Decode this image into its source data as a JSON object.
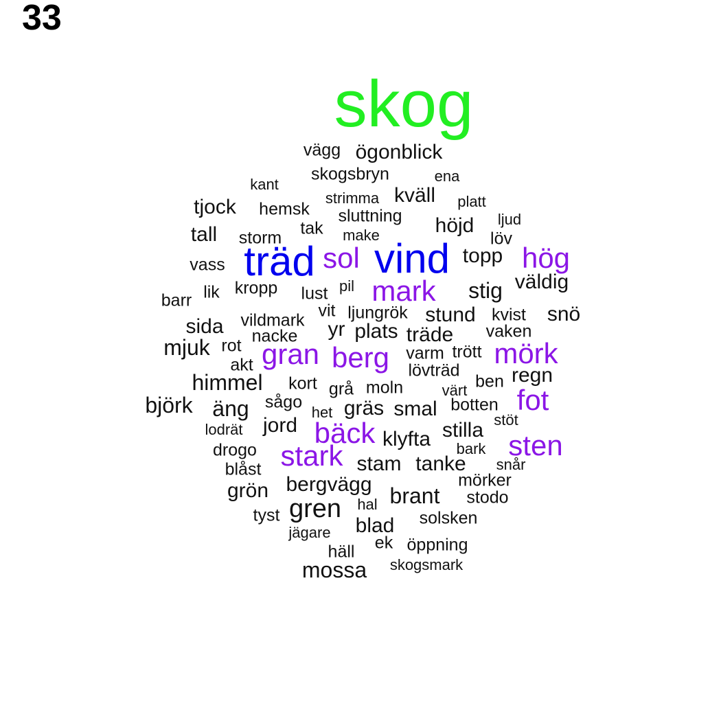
{
  "panel_number": "33",
  "colors": {
    "green": "#22ee22",
    "blue": "#0000ee",
    "purple": "#8b16e6",
    "black": "#111111"
  },
  "words": [
    {
      "text": "skog",
      "color": "green",
      "size": 1
    },
    {
      "text": "träd",
      "color": "blue",
      "size": 2
    },
    {
      "text": "vind",
      "color": "blue",
      "size": 2
    },
    {
      "text": "sol",
      "color": "purple",
      "size": 3
    },
    {
      "text": "hög",
      "color": "purple",
      "size": 3
    },
    {
      "text": "mark",
      "color": "purple",
      "size": 3
    },
    {
      "text": "berg",
      "color": "purple",
      "size": 3
    },
    {
      "text": "mörk",
      "color": "purple",
      "size": 3
    },
    {
      "text": "gran",
      "color": "purple",
      "size": 3
    },
    {
      "text": "fot",
      "color": "purple",
      "size": 3
    },
    {
      "text": "bäck",
      "color": "purple",
      "size": 3
    },
    {
      "text": "sten",
      "color": "purple",
      "size": 3
    },
    {
      "text": "stark",
      "color": "purple",
      "size": 3
    },
    {
      "text": "vägg",
      "color": "black",
      "size": 5
    },
    {
      "text": "ögonblick",
      "color": "black",
      "size": 4
    },
    {
      "text": "skogsbryn",
      "color": "black",
      "size": 5
    },
    {
      "text": "ena",
      "color": "black",
      "size": 6
    },
    {
      "text": "kant",
      "color": "black",
      "size": 6
    },
    {
      "text": "strimma",
      "color": "black",
      "size": 6
    },
    {
      "text": "kväll",
      "color": "black",
      "size": 4
    },
    {
      "text": "platt",
      "color": "black",
      "size": 6
    },
    {
      "text": "tjock",
      "color": "black",
      "size": 4
    },
    {
      "text": "hemsk",
      "color": "black",
      "size": 5
    },
    {
      "text": "sluttning",
      "color": "black",
      "size": 5
    },
    {
      "text": "ljud",
      "color": "black",
      "size": 6
    },
    {
      "text": "höjd",
      "color": "black",
      "size": 4
    },
    {
      "text": "tall",
      "color": "black",
      "size": 4
    },
    {
      "text": "tak",
      "color": "black",
      "size": 5
    },
    {
      "text": "make",
      "color": "black",
      "size": 6
    },
    {
      "text": "löv",
      "color": "black",
      "size": 5
    },
    {
      "text": "storm",
      "color": "black",
      "size": 5
    },
    {
      "text": "topp",
      "color": "black",
      "size": 4
    },
    {
      "text": "vass",
      "color": "black",
      "size": 5
    },
    {
      "text": "väldig",
      "color": "black",
      "size": 4
    },
    {
      "text": "kropp",
      "color": "black",
      "size": 5
    },
    {
      "text": "lik",
      "color": "black",
      "size": 5
    },
    {
      "text": "lust",
      "color": "black",
      "size": 5
    },
    {
      "text": "pil",
      "color": "black",
      "size": 6
    },
    {
      "text": "stig",
      "color": "black",
      "size": "4b"
    },
    {
      "text": "barr",
      "color": "black",
      "size": 5
    },
    {
      "text": "vit",
      "color": "black",
      "size": 5
    },
    {
      "text": "ljungrök",
      "color": "black",
      "size": 5
    },
    {
      "text": "stund",
      "color": "black",
      "size": 4
    },
    {
      "text": "kvist",
      "color": "black",
      "size": 5
    },
    {
      "text": "snö",
      "color": "black",
      "size": 4
    },
    {
      "text": "sida",
      "color": "black",
      "size": 4
    },
    {
      "text": "vildmark",
      "color": "black",
      "size": 5
    },
    {
      "text": "yr",
      "color": "black",
      "size": 4
    },
    {
      "text": "plats",
      "color": "black",
      "size": 4
    },
    {
      "text": "vaken",
      "color": "black",
      "size": 5
    },
    {
      "text": "nacke",
      "color": "black",
      "size": 5
    },
    {
      "text": "träde",
      "color": "black",
      "size": 4
    },
    {
      "text": "mjuk",
      "color": "black",
      "size": "4b"
    },
    {
      "text": "rot",
      "color": "black",
      "size": 5
    },
    {
      "text": "varm",
      "color": "black",
      "size": 5
    },
    {
      "text": "trött",
      "color": "black",
      "size": 5
    },
    {
      "text": "akt",
      "color": "black",
      "size": 5
    },
    {
      "text": "lövträd",
      "color": "black",
      "size": 5
    },
    {
      "text": "regn",
      "color": "black",
      "size": 4
    },
    {
      "text": "himmel",
      "color": "black",
      "size": "4b"
    },
    {
      "text": "kort",
      "color": "black",
      "size": 5
    },
    {
      "text": "grå",
      "color": "black",
      "size": 5
    },
    {
      "text": "moln",
      "color": "black",
      "size": 5
    },
    {
      "text": "ben",
      "color": "black",
      "size": 5
    },
    {
      "text": "värt",
      "color": "black",
      "size": 6
    },
    {
      "text": "björk",
      "color": "black",
      "size": "4b"
    },
    {
      "text": "äng",
      "color": "black",
      "size": "4b"
    },
    {
      "text": "sågo",
      "color": "black",
      "size": 5
    },
    {
      "text": "het",
      "color": "black",
      "size": 6
    },
    {
      "text": "gräs",
      "color": "black",
      "size": 4
    },
    {
      "text": "smal",
      "color": "black",
      "size": 4
    },
    {
      "text": "botten",
      "color": "black",
      "size": 5
    },
    {
      "text": "stöt",
      "color": "black",
      "size": 6
    },
    {
      "text": "lodrät",
      "color": "black",
      "size": 6
    },
    {
      "text": "jord",
      "color": "black",
      "size": 4
    },
    {
      "text": "klyfta",
      "color": "black",
      "size": 4
    },
    {
      "text": "stilla",
      "color": "black",
      "size": 4
    },
    {
      "text": "drogo",
      "color": "black",
      "size": 5
    },
    {
      "text": "bark",
      "color": "black",
      "size": 6
    },
    {
      "text": "blåst",
      "color": "black",
      "size": 5
    },
    {
      "text": "stam",
      "color": "black",
      "size": 4
    },
    {
      "text": "tanke",
      "color": "black",
      "size": 4
    },
    {
      "text": "snår",
      "color": "black",
      "size": 6
    },
    {
      "text": "mörker",
      "color": "black",
      "size": 5
    },
    {
      "text": "grön",
      "color": "black",
      "size": 4
    },
    {
      "text": "bergvägg",
      "color": "black",
      "size": 4
    },
    {
      "text": "brant",
      "color": "black",
      "size": "4b"
    },
    {
      "text": "stodo",
      "color": "black",
      "size": 5
    },
    {
      "text": "tyst",
      "color": "black",
      "size": 5
    },
    {
      "text": "gren",
      "color": "black",
      "size": "4c"
    },
    {
      "text": "hal",
      "color": "black",
      "size": 6
    },
    {
      "text": "solsken",
      "color": "black",
      "size": 5
    },
    {
      "text": "jägare",
      "color": "black",
      "size": 6
    },
    {
      "text": "blad",
      "color": "black",
      "size": 4
    },
    {
      "text": "ek",
      "color": "black",
      "size": 5
    },
    {
      "text": "öppning",
      "color": "black",
      "size": 5
    },
    {
      "text": "häll",
      "color": "black",
      "size": 5
    },
    {
      "text": "mossa",
      "color": "black",
      "size": "4b"
    },
    {
      "text": "skogsmark",
      "color": "black",
      "size": 6
    }
  ]
}
